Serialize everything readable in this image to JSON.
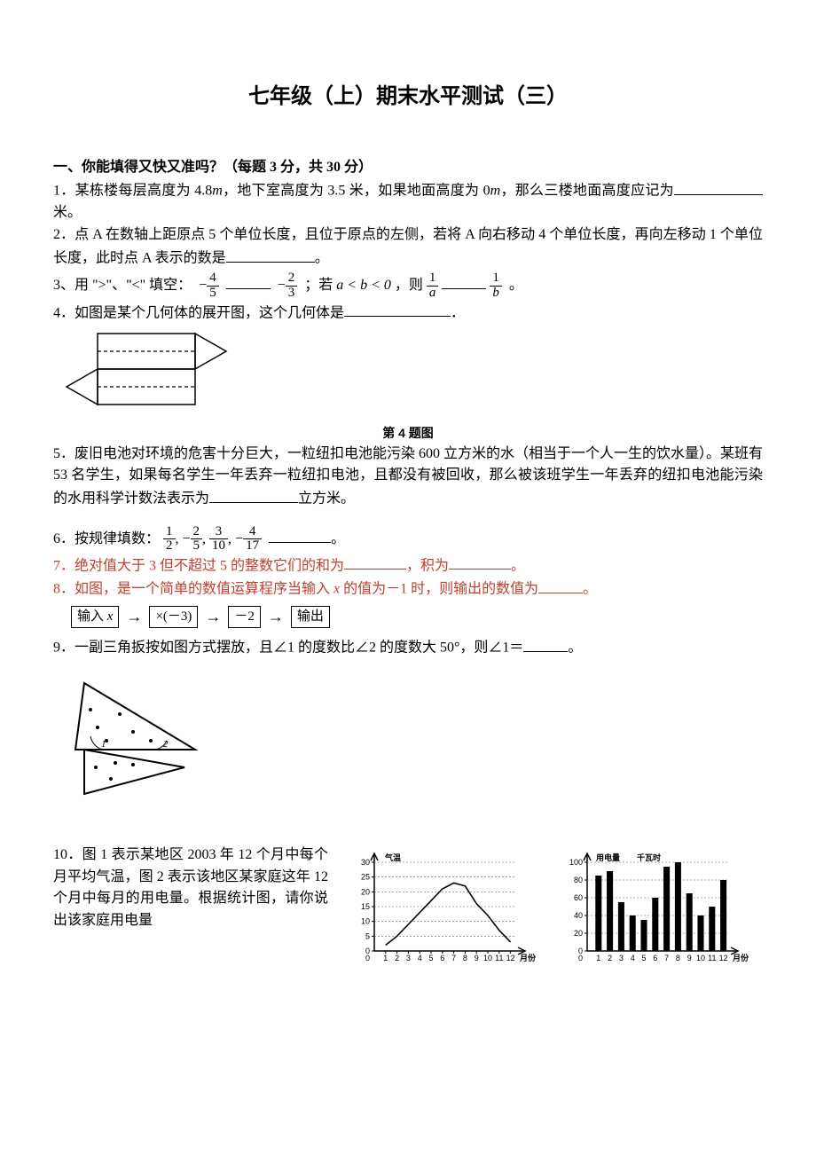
{
  "title": "七年级（上）期末水平测试（三）",
  "section1": {
    "head": "一、你能填得又快又准吗？（每题 3 分，共 30 分）"
  },
  "q1": {
    "text_a": "1．某栋楼每层高度为 4.8",
    "m": "m",
    "text_b": "，地下室高度为 3.5 米，如果地面高度为 0",
    "m2": "m",
    "text_c": "，那么三楼地面高度应记为",
    "text_d": "米。"
  },
  "q2": {
    "text_a": "2．点 A 在数轴上距原点 5 个单位长度，且位于原点的左侧，若将 A 向右移动 4 个单位长度，再向左移动 1 个单位长度，此时点 A 表示的数是",
    "text_b": "。"
  },
  "q3": {
    "text_a": "3、用 \">\"、\"<\" 填空：",
    "f1_num": "4",
    "f1_den": "5",
    "f2_num": "2",
    "f2_den": "3",
    "text_b": "；若",
    "rel": "a < b < 0",
    "text_c": "，则",
    "f3_num": "1",
    "f3_den": "a",
    "f4_num": "1",
    "f4_den": "b",
    "text_d": "。"
  },
  "q4": {
    "text_a": "4．如图是某个几何体的展开图，这个几何体是",
    "text_b": "．",
    "caption": "第 4 题图"
  },
  "q5": {
    "text": "5．废旧电池对环境的危害十分巨大，一粒纽扣电池能污染 600 立方米的水（相当于一个人一生的饮水量）。某班有 53 名学生，如果每名学生一年丢弃一粒纽扣电池，且都没有被回收，那么被该班学生一年丢弃的纽扣电池能污染的水用科学计数法表示为",
    "tail": "立方米。"
  },
  "q6": {
    "text_a": "6．按规律填数：",
    "s1n": "1",
    "s1d": "2",
    "s2n": "2",
    "s2d": "5",
    "s3n": "3",
    "s3d": "10",
    "s4n": "4",
    "s4d": "17",
    "text_b": "。"
  },
  "q7": {
    "text_a": "7．绝对值大于 3 但不超过 5 的整数它们的和为",
    "text_b": "，积为",
    "text_c": "。"
  },
  "q8": {
    "text_a": "8．如图，是一个简单的数值运算程序当输入 ",
    "x": "x",
    "text_b": " 的值为－1 时，则输出的数值为",
    "text_c": "。",
    "box1a": "输入 ",
    "box1b": "x",
    "box2": "×(－3)",
    "box3": "－2",
    "box4": "输出"
  },
  "q9": {
    "text_a": "9．一副三角扳按如图方式摆放，且∠1 的度数比∠2 的度数大 50°，则∠1＝",
    "text_b": "。"
  },
  "q10": {
    "text": "10．图 1 表示某地区 2003 年 12 个月中每个月平均气温，图 2 表示该地区某家庭这年 12 个月中每月的用电量。根据统计图，请你说出该家庭用电量"
  },
  "chart1": {
    "ylabel": "气温",
    "xlabel": "月份",
    "yticks": [
      0,
      5,
      10,
      15,
      20,
      25,
      30
    ],
    "xticks": [
      1,
      2,
      3,
      4,
      5,
      6,
      7,
      8,
      9,
      10,
      11,
      12
    ],
    "values": [
      2,
      5,
      9,
      13,
      17,
      21,
      23,
      22,
      16,
      12,
      7,
      3
    ],
    "axis_color": "#000000",
    "line_color": "#000000",
    "font_size": 9
  },
  "chart2": {
    "ylabel_a": "用电量",
    "ylabel_b": "千瓦时",
    "xlabel": "月份",
    "yticks": [
      0,
      20,
      40,
      60,
      80,
      100
    ],
    "xticks": [
      1,
      2,
      3,
      4,
      5,
      6,
      7,
      8,
      9,
      10,
      11,
      12
    ],
    "values": [
      85,
      90,
      55,
      40,
      35,
      60,
      95,
      100,
      65,
      40,
      50,
      80
    ],
    "axis_color": "#000000",
    "bar_color": "#000000",
    "font_size": 9
  }
}
